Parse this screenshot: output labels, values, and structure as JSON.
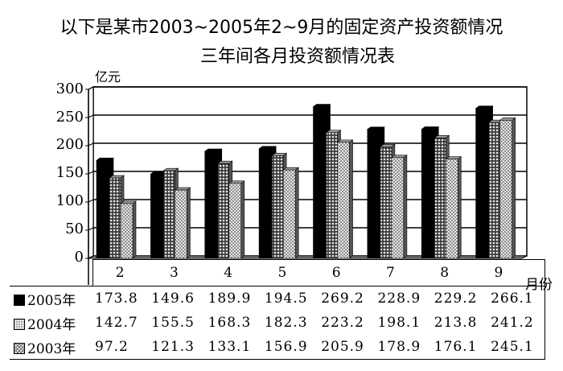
{
  "title": {
    "line1": "以下是某市2003~2005年2~9月的固定资产投资额情况",
    "line2": "三年间各月投资额情况表"
  },
  "axis": {
    "y_unit": "亿元",
    "x_unit": "月份",
    "y_ticks": [
      "300",
      "250",
      "200",
      "150",
      "100",
      "50",
      "0"
    ]
  },
  "legend": [
    {
      "label": "2005年",
      "pattern": "solid-black",
      "color": "#000000"
    },
    {
      "label": "2004年",
      "pattern": "dotted-dark",
      "color": "#777777"
    },
    {
      "label": "2003年",
      "pattern": "crosshatch-light",
      "color": "#cccccc"
    }
  ],
  "table": {
    "categories": [
      "2",
      "3",
      "4",
      "5",
      "6",
      "7",
      "8",
      "9"
    ],
    "rows": [
      {
        "label": "2005年",
        "values": [
          "173.8",
          "149.6",
          "189.9",
          "194.5",
          "269.2",
          "228.9",
          "229.2",
          "266.1"
        ]
      },
      {
        "label": "2004年",
        "values": [
          "142.7",
          "155.5",
          "168.3",
          "182.3",
          "223.2",
          "198.1",
          "213.8",
          "241.2"
        ]
      },
      {
        "label": "2003年",
        "values": [
          "97.2",
          "121.3",
          "133.1",
          "156.9",
          "205.9",
          "178.9",
          "176.1",
          "245.1"
        ]
      }
    ]
  },
  "chart_data": {
    "type": "bar",
    "title": "以下是某市2003~2005年2~9月的固定资产投资额情况 — 三年间各月投资额情况表",
    "xlabel": "月份",
    "ylabel": "亿元",
    "ylim": [
      0,
      300
    ],
    "yticks": [
      0,
      50,
      100,
      150,
      200,
      250,
      300
    ],
    "grid": true,
    "legend_position": "data-table-left",
    "categories": [
      "2",
      "3",
      "4",
      "5",
      "6",
      "7",
      "8",
      "9"
    ],
    "series": [
      {
        "name": "2005年",
        "values": [
          173.8,
          149.6,
          189.9,
          194.5,
          269.2,
          228.9,
          229.2,
          266.1
        ]
      },
      {
        "name": "2004年",
        "values": [
          142.7,
          155.5,
          168.3,
          182.3,
          223.2,
          198.1,
          213.8,
          241.2
        ]
      },
      {
        "name": "2003年",
        "values": [
          97.2,
          121.3,
          133.1,
          156.9,
          205.9,
          178.9,
          176.1,
          245.1
        ]
      }
    ]
  }
}
